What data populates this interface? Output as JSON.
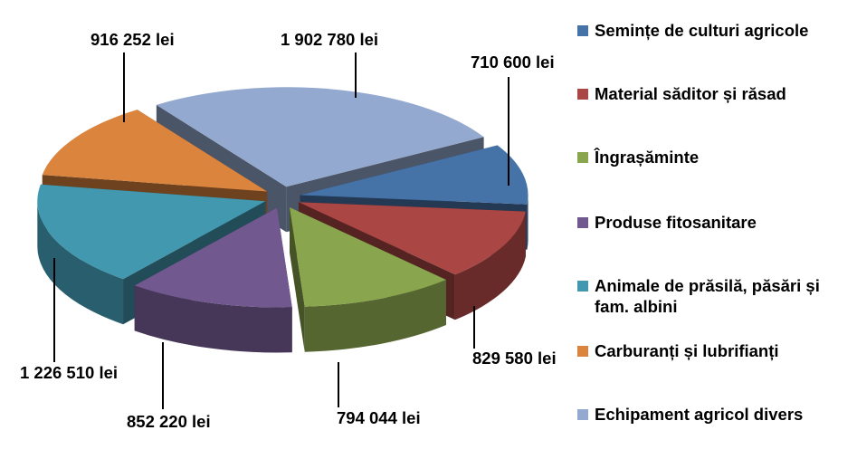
{
  "chart_data": {
    "type": "pie",
    "title": "",
    "unit": "lei",
    "categories": [
      "Semințe de culturi agricole",
      "Material săditor și răsad",
      "Îngrașăminte",
      "Produse fitosanitare",
      "Animale de prăsilă, păsări și fam. albini",
      "Carburanți și lubrifianți",
      "Echipament agricol divers"
    ],
    "values": [
      710600,
      829580,
      794044,
      852220,
      1226510,
      916252,
      1902780
    ],
    "labels": [
      "710 600 lei",
      "829 580 lei",
      "794 044 lei",
      "852 220 lei",
      "1 226 510 lei",
      "916 252 lei",
      "1 902 780 lei"
    ],
    "colors": [
      "#4572A7",
      "#AA4643",
      "#89A54E",
      "#71588F",
      "#4198AF",
      "#DB843D",
      "#93A9CF"
    ],
    "legend_position": "right",
    "exploded": true,
    "style": "3d"
  }
}
